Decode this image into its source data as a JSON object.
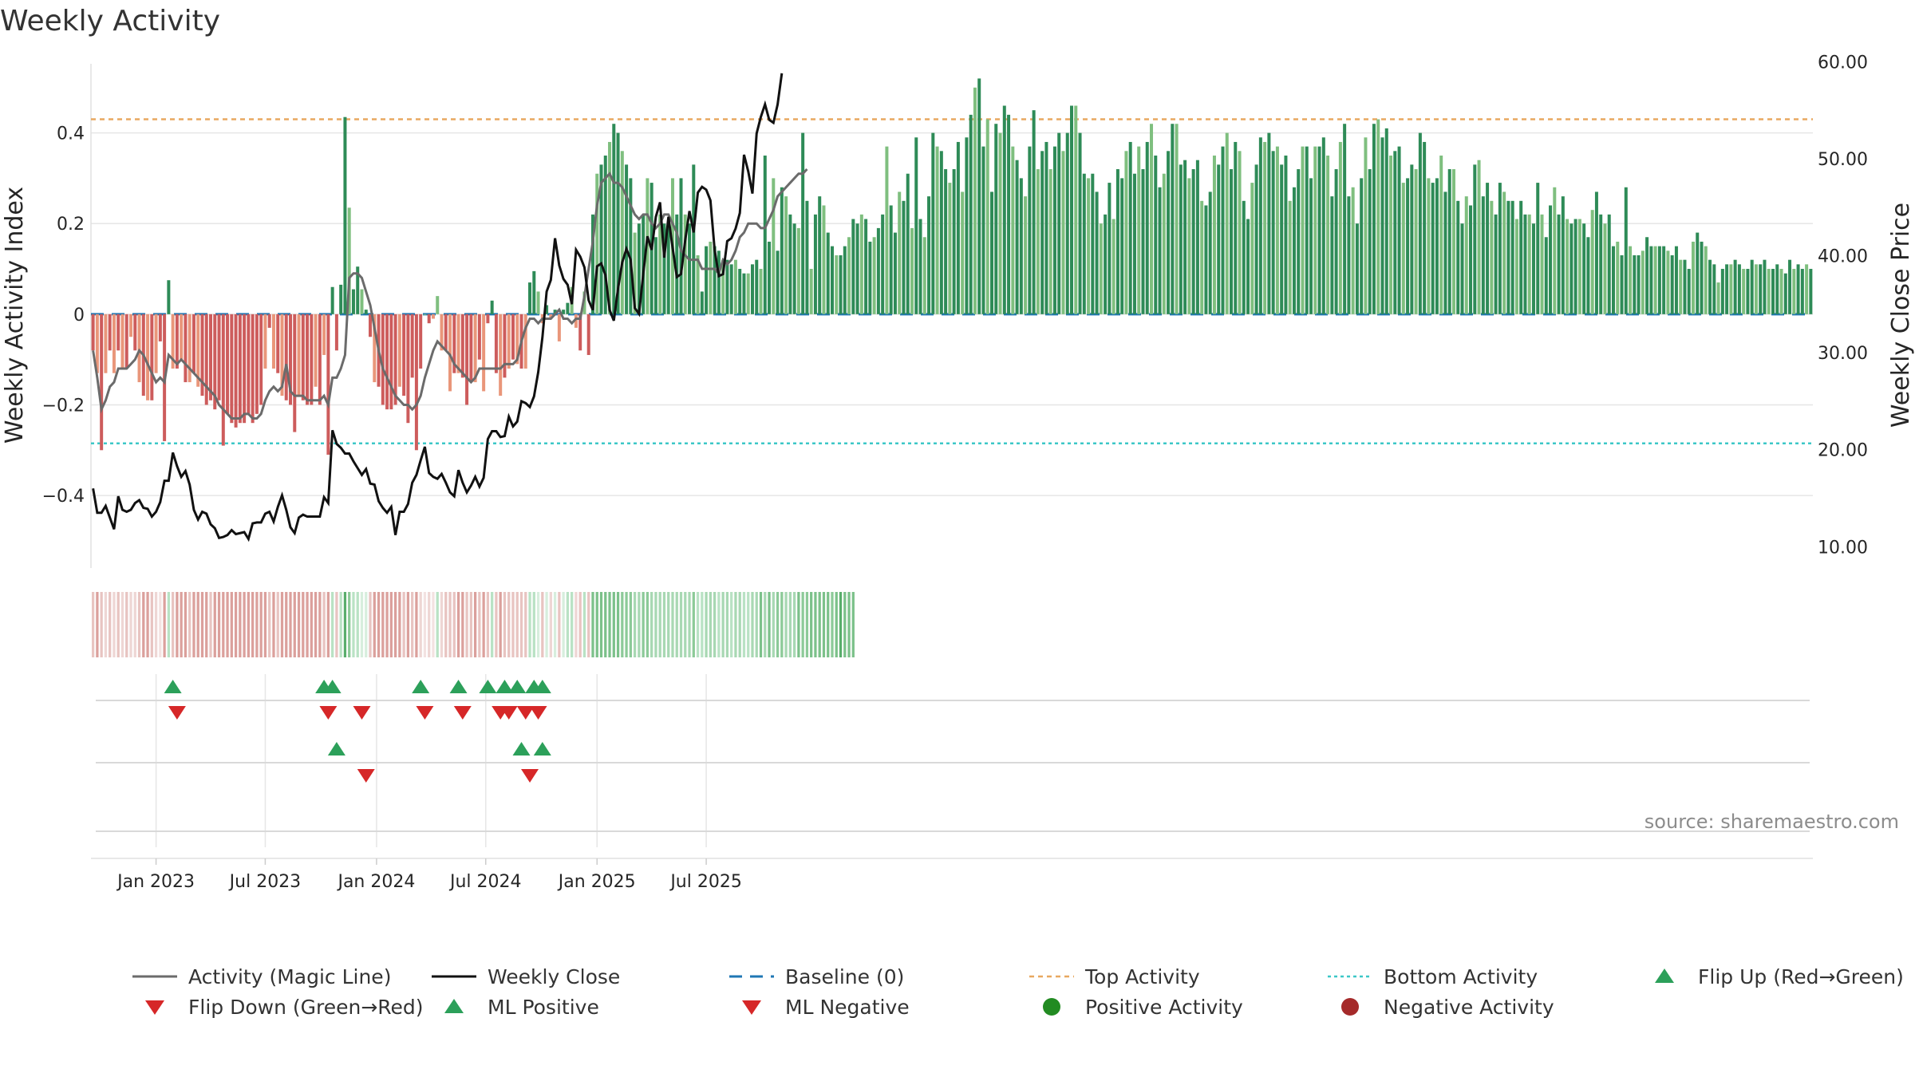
{
  "chart_data": {
    "type": "bar",
    "title": "Weekly Activity",
    "ylabel": "Weekly Activity Index",
    "y2label": "Weekly Close Price",
    "ylim": [
      -0.56,
      0.57
    ],
    "y2lim": [
      7.8,
      60.6
    ],
    "y_ticks": [
      0.4,
      0.2,
      0,
      -0.2,
      -0.4
    ],
    "y_tick_labels": [
      "0.4",
      "0.2",
      "0",
      "−0.2",
      "−0.4"
    ],
    "y2_ticks": [
      60,
      50,
      40,
      30,
      20,
      10
    ],
    "y2_tick_labels": [
      "60.00",
      "50.00",
      "40.00",
      "30.00",
      "20.00",
      "10.00"
    ],
    "x_ticks": [
      {
        "label": "Jan 2023",
        "week": 15
      },
      {
        "label": "Jul 2023",
        "week": 41
      },
      {
        "label": "Jan 2024",
        "week": 67.5
      },
      {
        "label": "Jul 2024",
        "week": 93.5
      },
      {
        "label": "Jan 2025",
        "week": 120
      },
      {
        "label": "Jul 2025",
        "week": 146
      }
    ],
    "first_week": "2022-10-17",
    "top_activity": 0.43,
    "bottom_activity": -0.285,
    "baseline": 0,
    "activity": [
      -0.08,
      -0.13,
      -0.3,
      -0.13,
      -0.08,
      -0.13,
      -0.08,
      -0.12,
      -0.12,
      -0.05,
      -0.08,
      -0.15,
      -0.18,
      -0.19,
      -0.19,
      -0.13,
      -0.06,
      -0.28,
      0.075,
      -0.12,
      -0.12,
      -0.1,
      -0.15,
      -0.15,
      -0.13,
      -0.16,
      -0.18,
      -0.2,
      -0.19,
      -0.21,
      -0.19,
      -0.29,
      -0.22,
      -0.24,
      -0.25,
      -0.24,
      -0.24,
      -0.22,
      -0.24,
      -0.22,
      -0.2,
      -0.12,
      -0.03,
      -0.12,
      -0.13,
      -0.18,
      -0.19,
      -0.2,
      -0.26,
      -0.18,
      -0.19,
      -0.2,
      -0.2,
      -0.16,
      -0.2,
      -0.09,
      -0.31,
      0.06,
      -0.08,
      0.065,
      0.435,
      0.235,
      0.055,
      0.105,
      0.055,
      0.01,
      -0.05,
      -0.15,
      -0.16,
      -0.2,
      -0.21,
      -0.21,
      -0.2,
      -0.16,
      -0.18,
      -0.24,
      -0.14,
      -0.3,
      -0.12,
      0.0,
      -0.02,
      -0.01,
      0.04,
      -0.08,
      -0.08,
      -0.17,
      -0.13,
      -0.13,
      -0.14,
      -0.2,
      -0.15,
      -0.15,
      -0.1,
      -0.17,
      -0.02,
      0.03,
      -0.13,
      -0.18,
      -0.14,
      -0.12,
      -0.1,
      -0.11,
      -0.12,
      -0.12,
      0.07,
      0.095,
      0.05,
      -0.02,
      0.02,
      -0.01,
      0.01,
      -0.06,
      0.01,
      0.025,
      0.06,
      -0.03,
      -0.08,
      0.05,
      -0.09,
      0.22,
      0.31,
      0.33,
      0.35,
      0.38,
      0.42,
      0.4,
      0.36,
      0.33,
      0.3,
      0.18,
      0.2,
      0.22,
      0.3,
      0.29,
      0.17,
      0.22,
      0.2,
      0.2,
      0.3,
      0.22,
      0.3,
      0.22,
      0.2,
      0.33,
      0.13,
      0.05,
      0.15,
      0.16,
      0.15,
      0.14,
      0.12,
      0.12,
      0.11,
      0.12,
      0.1,
      0.09,
      0.09,
      0.11,
      0.12,
      0.1,
      0.35,
      0.16,
      0.3,
      0.14,
      0.28,
      0.26,
      0.22,
      0.2,
      0.19,
      0.4,
      0.25,
      0.1,
      0.22,
      0.26,
      0.24,
      0.18,
      0.15,
      0.13,
      0.13,
      0.15,
      0.17,
      0.21,
      0.2,
      0.22,
      0.21,
      0.16,
      0.17,
      0.19,
      0.22,
      0.37,
      0.24,
      0.18,
      0.27,
      0.25,
      0.31,
      0.19,
      0.39,
      0.21,
      0.17,
      0.26,
      0.4,
      0.37,
      0.36,
      0.32,
      0.29,
      0.32,
      0.38,
      0.27,
      0.39,
      0.44,
      0.5,
      0.52,
      0.37,
      0.43,
      0.27,
      0.42,
      0.4,
      0.46,
      0.44,
      0.37,
      0.34,
      0.3,
      0.26,
      0.37,
      0.45,
      0.32,
      0.36,
      0.38,
      0.32,
      0.37,
      0.4,
      0.36,
      0.4,
      0.46,
      0.46,
      0.4,
      0.31,
      0.3,
      0.31,
      0.27,
      0.2,
      0.22,
      0.29,
      0.21,
      0.32,
      0.3,
      0.36,
      0.38,
      0.31,
      0.37,
      0.32,
      0.38,
      0.42,
      0.35,
      0.28,
      0.31,
      0.36,
      0.42,
      0.42,
      0.33,
      0.34,
      0.3,
      0.32,
      0.34,
      0.25,
      0.24,
      0.27,
      0.35,
      0.33,
      0.37,
      0.4,
      0.32,
      0.38,
      0.36,
      0.25,
      0.21,
      0.29,
      0.33,
      0.39,
      0.38,
      0.4,
      0.36,
      0.37,
      0.33,
      0.35,
      0.25,
      0.28,
      0.32,
      0.37,
      0.37,
      0.3,
      0.37,
      0.37,
      0.39,
      0.35,
      0.26,
      0.32,
      0.38,
      0.42,
      0.26,
      0.28,
      0.2,
      0.3,
      0.39,
      0.32,
      0.42,
      0.43,
      0.39,
      0.41,
      0.35,
      0.36,
      0.37,
      0.29,
      0.3,
      0.33,
      0.32,
      0.4,
      0.38,
      0.3,
      0.29,
      0.3,
      0.35,
      0.27,
      0.32,
      0.32,
      0.25,
      0.2,
      0.26,
      0.24,
      0.33,
      0.34,
      0.26,
      0.29,
      0.25,
      0.22,
      0.29,
      0.27,
      0.25,
      0.25,
      0.21,
      0.25,
      0.22,
      0.22,
      0.2,
      0.29,
      0.22,
      0.17,
      0.24,
      0.28,
      0.22,
      0.26,
      0.21,
      0.2,
      0.21,
      0.21,
      0.2,
      0.17,
      0.23,
      0.27,
      0.22,
      0.2,
      0.22,
      0.15,
      0.16,
      0.13,
      0.28,
      0.15,
      0.13,
      0.13,
      0.14,
      0.17,
      0.15,
      0.15,
      0.15,
      0.15,
      0.14,
      0.13,
      0.15,
      0.12,
      0.12,
      0.1,
      0.16,
      0.18,
      0.16,
      0.15,
      0.12,
      0.11,
      0.07,
      0.1,
      0.11,
      0.11,
      0.12,
      0.11,
      0.1,
      0.1,
      0.12,
      0.11,
      0.11,
      0.12,
      0.1,
      0.1,
      0.11,
      0.1,
      0.09,
      0.12,
      0.1,
      0.11,
      0.1,
      0.11,
      0.1
    ],
    "magic_line": [
      -0.08,
      -0.14,
      -0.21,
      -0.19,
      -0.16,
      -0.15,
      -0.12,
      -0.12,
      -0.12,
      -0.11,
      -0.1,
      -0.08,
      -0.09,
      -0.11,
      -0.13,
      -0.15,
      -0.14,
      -0.15,
      -0.09,
      -0.1,
      -0.11,
      -0.1,
      -0.11,
      -0.12,
      -0.13,
      -0.14,
      -0.15,
      -0.16,
      -0.17,
      -0.18,
      -0.2,
      -0.21,
      -0.22,
      -0.23,
      -0.23,
      -0.23,
      -0.22,
      -0.22,
      -0.23,
      -0.23,
      -0.22,
      -0.19,
      -0.17,
      -0.16,
      -0.17,
      -0.16,
      -0.11,
      -0.17,
      -0.18,
      -0.18,
      -0.18,
      -0.19,
      -0.19,
      -0.19,
      -0.19,
      -0.18,
      -0.2,
      -0.14,
      -0.14,
      -0.12,
      -0.09,
      0.08,
      0.09,
      0.09,
      0.08,
      0.05,
      0.02,
      -0.03,
      -0.08,
      -0.12,
      -0.14,
      -0.16,
      -0.18,
      -0.19,
      -0.2,
      -0.2,
      -0.21,
      -0.2,
      -0.18,
      -0.14,
      -0.11,
      -0.08,
      -0.06,
      -0.07,
      -0.08,
      -0.09,
      -0.11,
      -0.12,
      -0.13,
      -0.14,
      -0.15,
      -0.14,
      -0.12,
      -0.12,
      -0.12,
      -0.12,
      -0.12,
      -0.12,
      -0.11,
      -0.11,
      -0.11,
      -0.1,
      -0.06,
      -0.03,
      -0.01,
      -0.01,
      -0.02,
      -0.01,
      -0.01,
      -0.01,
      0.0,
      0.01,
      -0.01,
      -0.01,
      -0.02,
      -0.01,
      -0.01,
      0.04,
      0.1,
      0.16,
      0.24,
      0.29,
      0.3,
      0.31,
      0.29,
      0.29,
      0.28,
      0.26,
      0.24,
      0.22,
      0.21,
      0.22,
      0.22,
      0.2,
      0.19,
      0.2,
      0.22,
      0.22,
      0.2,
      0.18,
      0.14,
      0.13,
      0.12,
      0.12,
      0.12,
      0.1,
      0.1,
      0.1,
      0.1,
      0.09,
      0.12,
      0.11,
      0.12,
      0.14,
      0.17,
      0.18,
      0.2,
      0.2,
      0.2,
      0.19,
      0.19,
      0.21,
      0.23,
      0.26,
      0.27,
      0.28,
      0.29,
      0.3,
      0.31,
      0.31,
      0.32
    ],
    "weekly_close": [
      16.0,
      13.5,
      13.5,
      14.2,
      13.0,
      11.8,
      15.2,
      13.8,
      13.6,
      13.8,
      14.5,
      14.8,
      14.0,
      13.9,
      13.1,
      13.6,
      14.6,
      16.8,
      16.8,
      19.7,
      18.3,
      17.2,
      17.8,
      16.4,
      13.8,
      12.8,
      13.6,
      13.4,
      12.3,
      11.9,
      10.9,
      11.0,
      11.2,
      11.7,
      11.3,
      11.4,
      11.5,
      10.8,
      12.4,
      12.5,
      12.5,
      13.4,
      13.6,
      12.6,
      14.1,
      15.3,
      13.8,
      12.0,
      11.4,
      13.0,
      13.3,
      13.1,
      13.1,
      13.1,
      13.1,
      15.1,
      14.5,
      22.0,
      20.6,
      20.2,
      19.6,
      19.6,
      18.8,
      18.1,
      17.4,
      18.0,
      16.5,
      16.4,
      14.7,
      14.0,
      13.5,
      14.1,
      11.2,
      13.6,
      13.6,
      14.4,
      16.6,
      17.4,
      18.9,
      20.3,
      17.6,
      17.2,
      17.0,
      17.5,
      16.6,
      15.6,
      15.2,
      17.9,
      16.6,
      15.6,
      16.3,
      17.2,
      16.2,
      17.1,
      21.1,
      21.9,
      21.9,
      21.3,
      21.4,
      23.4,
      22.4,
      22.9,
      25.0,
      24.8,
      24.4,
      25.5,
      28.0,
      31.6,
      36.3,
      37.5,
      41.8,
      39.0,
      37.6,
      37.0,
      35.0,
      40.6,
      39.9,
      38.8,
      35.4,
      34.4,
      38.9,
      39.2,
      38.0,
      34.4,
      33.3,
      36.6,
      39.3,
      40.7,
      39.6,
      34.6,
      34.0,
      38.1,
      42.0,
      40.6,
      44.0,
      45.5,
      39.8,
      44.0,
      40.8,
      37.8,
      38.1,
      41.6,
      44.6,
      42.4,
      46.5,
      47.1,
      46.8,
      45.7,
      40.6,
      37.9,
      38.1,
      41.5,
      41.8,
      42.8,
      44.4,
      50.4,
      48.7,
      46.4,
      52.6,
      54.3,
      55.6,
      54.0,
      53.7,
      55.6,
      58.8
    ],
    "strip_colors": [
      "#e8c4c1",
      "#dba09c",
      "#e8c4c1",
      "#eed6d4",
      "#e8c4c1",
      "#eed6d4",
      "#e8c4c1",
      "#eed6d4",
      "#e8c4c1",
      "#eed6d4",
      "#eed6d4",
      "#e8c4c1",
      "#dba09c",
      "#dba09c",
      "#e8c4c1",
      "#eed6d4",
      "#f3e2e1",
      "#dba09c",
      "#b9e2c4",
      "#e8c4c1",
      "#dba09c",
      "#dba09c",
      "#dba09c",
      "#e8c4c1",
      "#dba09c",
      "#dba09c",
      "#dba09c",
      "#dba09c",
      "#e8c4c1",
      "#dba09c",
      "#dba09c",
      "#dba09c",
      "#dba09c",
      "#dba09c",
      "#dba09c",
      "#dba09c",
      "#dba09c",
      "#dba09c",
      "#dba09c",
      "#dba09c",
      "#dba09c",
      "#dba09c",
      "#e8c4c1",
      "#dba09c",
      "#e8c4c1",
      "#dba09c",
      "#dba09c",
      "#dba09c",
      "#dba09c",
      "#dba09c",
      "#dba09c",
      "#dba09c",
      "#dba09c",
      "#dba09c",
      "#dba09c",
      "#e8c4c1",
      "#dba09c",
      "#b9e2c4",
      "#e8c4c1",
      "#b9e2c4",
      "#59ad6b",
      "#8cca98",
      "#b9e2c4",
      "#b9e2c4",
      "#d7eedd",
      "#d7eedd",
      "#e8c4c1",
      "#dba09c",
      "#dba09c",
      "#dba09c",
      "#dba09c",
      "#dba09c",
      "#dba09c",
      "#dba09c",
      "#e8c4c1",
      "#dba09c",
      "#e8c4c1",
      "#dba09c",
      "#eed6d4",
      "#f3e2e1",
      "#eed6d4",
      "#f3e2e1",
      "#b9e2c4",
      "#eed6d4",
      "#e8c4c1",
      "#e8c4c1",
      "#e8c4c1",
      "#dba09c",
      "#dba09c",
      "#e8c4c1",
      "#e8c4c1",
      "#dba09c",
      "#e8c4c1",
      "#dba09c",
      "#e8c4c1",
      "#b9e2c4",
      "#e8c4c1",
      "#dba09c",
      "#e8c4c1",
      "#e8c4c1",
      "#e8c4c1",
      "#e8c4c1",
      "#e8c4c1",
      "#e8c4c1",
      "#b9e2c4",
      "#b9e2c4",
      "#d7eedd",
      "#e8c4c1",
      "#d7eedd",
      "#eed6d4",
      "#d7eedd",
      "#e8c4c1",
      "#d7eedd",
      "#b9e2c4",
      "#b9e2c4",
      "#eed6d4",
      "#e8c4c1",
      "#b9e2c4",
      "#e8c4c1",
      "#7cc18a",
      "#7cc18a",
      "#7cc18a",
      "#7cc18a",
      "#7cc18a",
      "#7cc18a",
      "#7cc18a",
      "#8cca98",
      "#8cca98",
      "#8cca98",
      "#a8d8b3",
      "#a8d8b3",
      "#8cca98",
      "#8cca98",
      "#a8d8b3",
      "#a8d8b3",
      "#a8d8b3",
      "#a8d8b3",
      "#a8d8b3",
      "#a8d8b3",
      "#a8d8b3",
      "#a8d8b3",
      "#a8d8b3",
      "#a8d8b3",
      "#8cca98",
      "#b9e2c4",
      "#b9e2c4",
      "#a8d8b3",
      "#a8d8b3",
      "#a8d8b3",
      "#b9e2c4",
      "#a8d8b3",
      "#a8d8b3",
      "#b9e2c4",
      "#a8d8b3",
      "#a8d8b3",
      "#b9e2c4",
      "#b9e2c4",
      "#a8d8b3",
      "#a8d8b3",
      "#7cc18a",
      "#a8d8b3",
      "#7cc18a",
      "#a8d8b3",
      "#8cca98",
      "#8cca98",
      "#a8d8b3",
      "#a8d8b3",
      "#a8d8b3",
      "#7cc18a",
      "#8cca98",
      "#8cca98",
      "#7cc18a",
      "#7cc18a",
      "#7cc18a",
      "#7cc18a",
      "#7cc18a",
      "#8cca98",
      "#7cc18a",
      "#59ad6b",
      "#7cc18a",
      "#7cc18a",
      "#7cc18a"
    ],
    "flip_up_weeks": [
      19,
      55,
      57,
      78,
      87,
      94,
      98,
      101,
      105,
      107
    ],
    "flip_down_weeks": [
      20,
      56,
      64,
      79,
      88,
      97,
      99,
      103,
      106
    ],
    "ml_positive_weeks": [
      58,
      102,
      107
    ],
    "ml_negative_weeks": [
      65,
      104
    ],
    "legend": [
      {
        "key": "magic",
        "label": "Activity (Magic Line)"
      },
      {
        "key": "close",
        "label": "Weekly Close"
      },
      {
        "key": "baseline",
        "label": "Baseline (0)"
      },
      {
        "key": "top",
        "label": "Top Activity"
      },
      {
        "key": "bottom",
        "label": "Bottom Activity"
      },
      {
        "key": "flipup",
        "label": "Flip Up (Red→Green)"
      },
      {
        "key": "flipdown",
        "label": "Flip Down (Green→Red)"
      },
      {
        "key": "mlpos",
        "label": "ML Positive"
      },
      {
        "key": "mlneg",
        "label": "ML Negative"
      },
      {
        "key": "pos",
        "label": "Positive Activity"
      },
      {
        "key": "neg",
        "label": "Negative Activity"
      }
    ],
    "source": "source: sharemaestro.com"
  },
  "colors": {
    "green_dark": "#2e8b57",
    "green_light": "#7fbf7f",
    "red_dark": "#cd5c5c",
    "red_light": "#e9967a",
    "magic_line": "#6b6b6b",
    "close_line": "#111111",
    "baseline": "#1f77b4",
    "top": "#e8a860",
    "bottom": "#3cc7c7",
    "marker_green": "#2ca05a",
    "marker_red": "#d62728",
    "dot_green": "#228b22",
    "dot_red": "#a52a2a"
  }
}
